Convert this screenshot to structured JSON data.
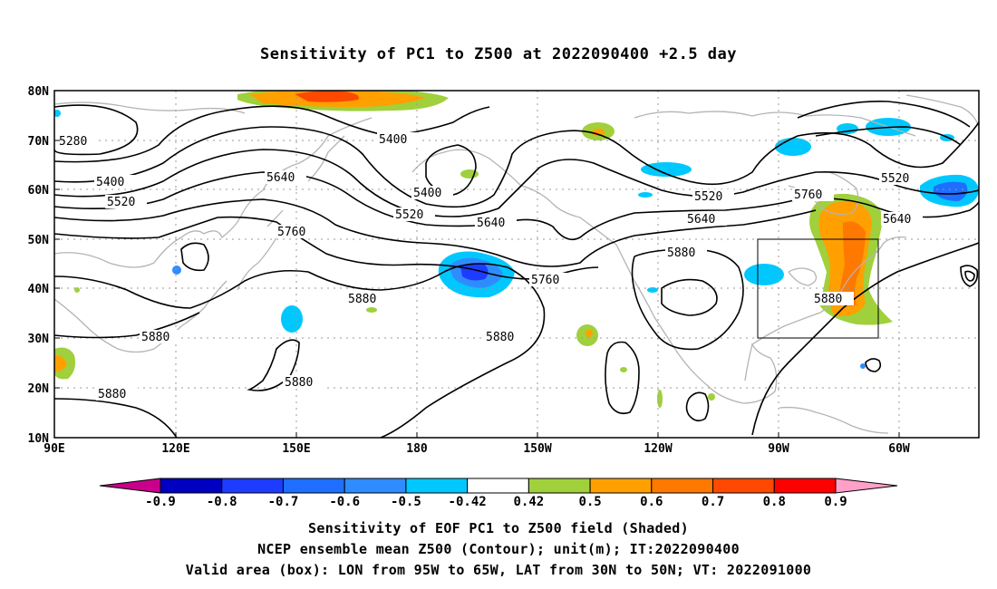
{
  "title": "Sensitivity of PC1 to Z500 at 2022090400 +2.5 day",
  "lat_labels": [
    "80N",
    "70N",
    "60N",
    "50N",
    "40N",
    "30N",
    "20N",
    "10N"
  ],
  "lon_labels": [
    "90E",
    "120E",
    "150E",
    "180",
    "150W",
    "120W",
    "90W",
    "60W"
  ],
  "contour_labels": {
    "c5280": "5280",
    "c5400a": "5400",
    "c5400b": "5400",
    "c5400c": "5400",
    "c5520a": "5520",
    "c5520b": "5520",
    "c5520c": "5520",
    "c5520d": "5520",
    "c5640a": "5640",
    "c5640b": "5640",
    "c5640c": "5640",
    "c5640d": "5640",
    "c5760a": "5760",
    "c5760b": "5760",
    "c5760c": "5760",
    "c5880a": "5880",
    "c5880b": "5880",
    "c5880c": "5880",
    "c5880d": "5880",
    "c5880e": "5880",
    "c5880f": "5880",
    "c5880g": "5880"
  },
  "colorbar": {
    "labels": [
      "-0.9",
      "-0.8",
      "-0.7",
      "-0.6",
      "-0.5",
      "-0.42",
      "0.42",
      "0.5",
      "0.6",
      "0.7",
      "0.8",
      "0.9"
    ],
    "colors": [
      "#0000c0",
      "#1e3cff",
      "#1e6eff",
      "#2f8cff",
      "#00c8ff",
      "#ffffff",
      "#a0d03c",
      "#ffa000",
      "#ff7800",
      "#ff4800",
      "#ff0000"
    ],
    "low_extend_color": "#c8008c",
    "high_extend_color": "#ffa0c8"
  },
  "box": {
    "label": "Valid area",
    "lon": [
      "95W",
      "65W"
    ],
    "lat": [
      "30N",
      "50N"
    ]
  },
  "footer": {
    "line1": "Sensitivity of EOF PC1 to Z500 field (Shaded)",
    "line2": "NCEP ensemble mean Z500 (Contour); unit(m); IT:2022090400",
    "line3": "Valid area (box): LON from 95W to 65W, LAT from 30N to 50N; VT: 2022091000"
  }
}
